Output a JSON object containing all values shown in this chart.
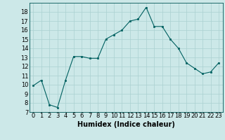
{
  "x": [
    0,
    1,
    2,
    3,
    4,
    5,
    6,
    7,
    8,
    9,
    10,
    11,
    12,
    13,
    14,
    15,
    16,
    17,
    18,
    19,
    20,
    21,
    22,
    23
  ],
  "y": [
    9.9,
    10.5,
    7.8,
    7.5,
    10.5,
    13.1,
    13.1,
    12.9,
    12.9,
    15.0,
    15.5,
    16.0,
    17.0,
    17.2,
    18.5,
    16.4,
    16.4,
    15.0,
    14.0,
    12.4,
    11.8,
    11.2,
    11.4,
    12.4
  ],
  "line_color": "#006060",
  "marker_color": "#006060",
  "bg_color": "#cce8e8",
  "grid_color": "#aad0d0",
  "xlabel": "Humidex (Indice chaleur)",
  "ylim": [
    7,
    19
  ],
  "yticks": [
    7,
    8,
    9,
    10,
    11,
    12,
    13,
    14,
    15,
    16,
    17,
    18
  ],
  "xticks": [
    0,
    1,
    2,
    3,
    4,
    5,
    6,
    7,
    8,
    9,
    10,
    11,
    12,
    13,
    14,
    15,
    16,
    17,
    18,
    19,
    20,
    21,
    22,
    23
  ],
  "xlim": [
    -0.5,
    23.5
  ],
  "xlabel_fontsize": 7,
  "tick_fontsize": 6
}
